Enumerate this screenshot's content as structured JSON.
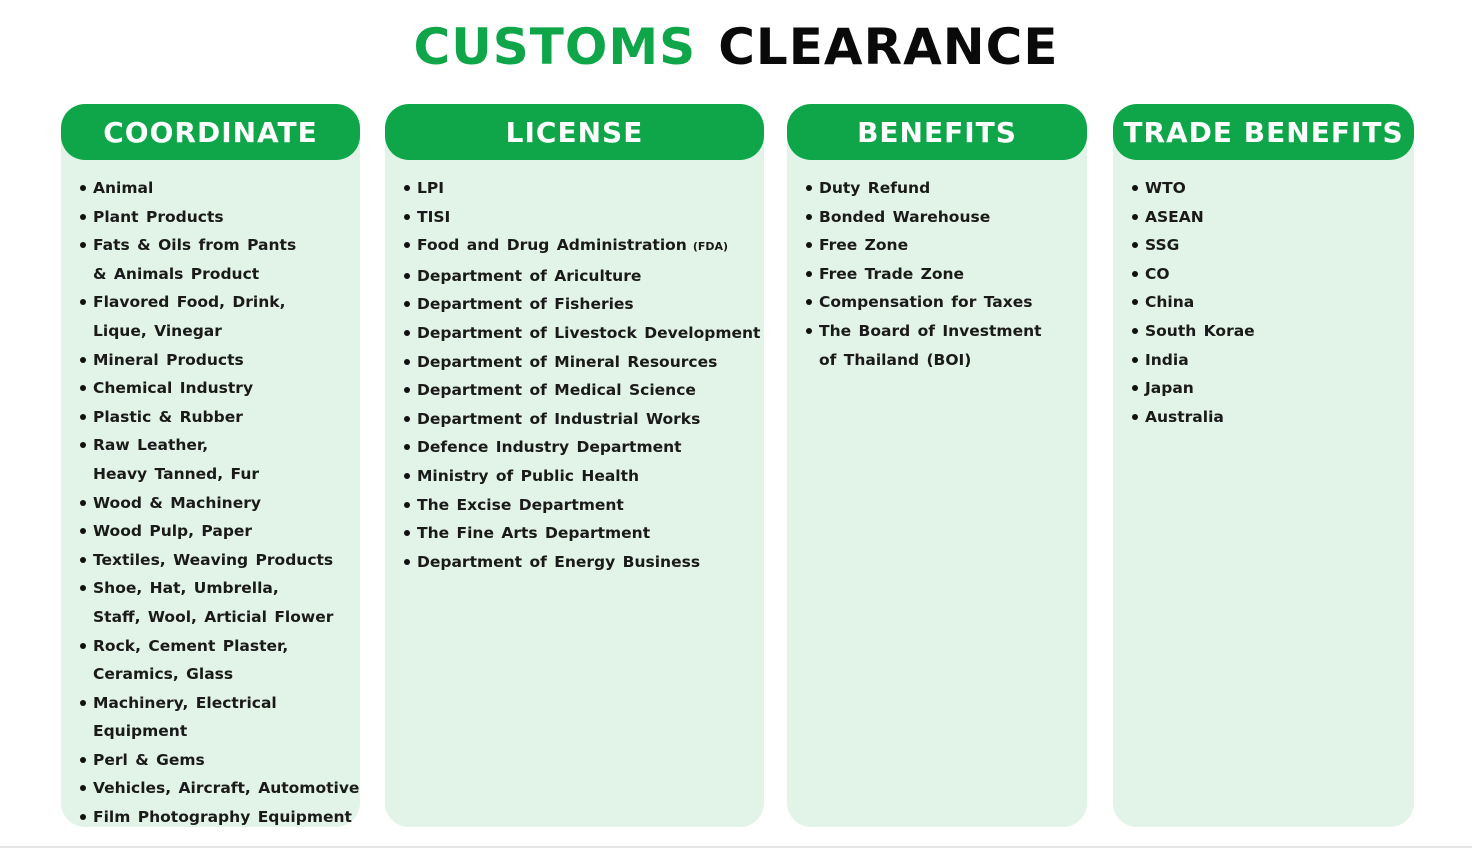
{
  "title": {
    "part1": "CUSTOMS",
    "part2": "CLEARANCE"
  },
  "accent_color": "#0fa64a",
  "panel_color": "#e2f4e7",
  "columns": [
    {
      "header": "COORDINATE",
      "items": [
        "Animal",
        "Plant Products",
        "Fats & Oils from Pants\n& Animals Product",
        "Flavored Food, Drink,\nLique, Vinegar",
        "Mineral Products",
        "Chemical Industry",
        "Plastic & Rubber",
        "Raw Leather,\nHeavy Tanned, Fur",
        "Wood & Machinery",
        "Wood Pulp, Paper",
        "Textiles, Weaving Products",
        "Shoe, Hat, Umbrella,\nStaff, Wool, Articial Flower",
        "Rock, Cement Plaster,\nCeramics, Glass",
        "Machinery, Electrical Equipment",
        "Perl & Gems",
        "Vehicles, Aircraft, Automotive",
        "Film Photography Equipment"
      ]
    },
    {
      "header": "LICENSE",
      "items": [
        "LPI",
        "TISI",
        "Food and Drug Administration",
        "Department of Ariculture",
        "Department of Fisheries",
        "Department of Livestock Development",
        "Department of Mineral Resources",
        "Department of Medical Science",
        "Department of Industrial Works",
        "Defence Industry Department",
        "Ministry of Public Health",
        "The Excise Department",
        "The Fine Arts Department",
        "Department of Energy Business"
      ],
      "fda_tag": "(FDA)"
    },
    {
      "header": "BENEFITS",
      "items": [
        "Duty Refund",
        "Bonded Warehouse",
        "Free Zone",
        "Free Trade Zone",
        "Compensation for Taxes",
        "The Board of Investment\nof Thailand (BOI)"
      ]
    },
    {
      "header": "TRADE  BENEFITS",
      "items": [
        "WTO",
        "ASEAN",
        "SSG",
        "CO",
        "China",
        "South Korae",
        "India",
        "Japan",
        "Australia"
      ]
    }
  ]
}
